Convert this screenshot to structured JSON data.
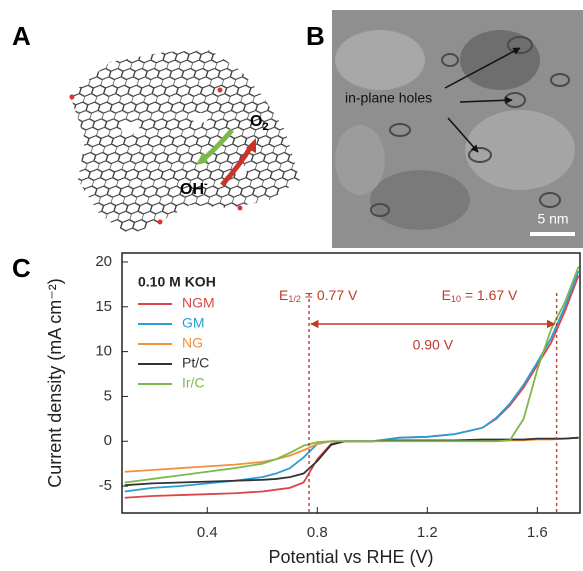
{
  "panels": {
    "a": {
      "label": "A",
      "o2": "O",
      "o2_sub": "2",
      "oh": "OH",
      "oh_sup": "-"
    },
    "b": {
      "label": "B",
      "annotation": "in-plane holes",
      "scale_bar": "5 nm"
    },
    "c": {
      "label": "C"
    }
  },
  "chart_data": {
    "type": "line",
    "xlabel": "Potential vs RHE (V)",
    "ylabel": "Current density (mA cm⁻²)",
    "legend_title": "0.10 M KOH",
    "x": [
      0.1,
      0.2,
      0.3,
      0.4,
      0.5,
      0.6,
      0.65,
      0.7,
      0.75,
      0.8,
      0.85,
      0.9,
      1.0,
      1.1,
      1.2,
      1.3,
      1.4,
      1.45,
      1.5,
      1.55,
      1.6,
      1.65,
      1.7,
      1.75
    ],
    "series": [
      {
        "name": "NGM",
        "color": "#d9454a",
        "values": [
          -6.3,
          -6.1,
          -6.0,
          -5.9,
          -5.8,
          -5.6,
          -5.4,
          -5.2,
          -4.6,
          -2.0,
          -0.3,
          0,
          0,
          0.4,
          0.5,
          0.8,
          1.5,
          2.5,
          4.0,
          6.0,
          8.5,
          11.0,
          14.5,
          18.5
        ]
      },
      {
        "name": "GM",
        "color": "#2a9fd6",
        "values": [
          -5.6,
          -5.2,
          -5.0,
          -4.7,
          -4.4,
          -4.0,
          -3.6,
          -3.0,
          -1.8,
          -0.3,
          0,
          0,
          0,
          0.4,
          0.5,
          0.8,
          1.5,
          2.6,
          4.2,
          6.3,
          8.8,
          11.5,
          15.0,
          19.0
        ]
      },
      {
        "name": "NG",
        "color": "#f0923a",
        "values": [
          -3.4,
          -3.2,
          -3.0,
          -2.8,
          -2.6,
          -2.3,
          -2.0,
          -1.6,
          -1.0,
          -0.3,
          0,
          0,
          0,
          0.1,
          0.1,
          0.1,
          0.1,
          0.1,
          0.1,
          0.1,
          0.2,
          0.2,
          0.3,
          0.4
        ]
      },
      {
        "name": "Pt/C",
        "color": "#333333",
        "values": [
          -4.9,
          -4.7,
          -4.6,
          -4.5,
          -4.4,
          -4.3,
          -4.2,
          -4.0,
          -3.6,
          -2.2,
          -0.4,
          0,
          0,
          0.1,
          0.1,
          0.1,
          0.2,
          0.2,
          0.2,
          0.2,
          0.3,
          0.3,
          0.3,
          0.4
        ]
      },
      {
        "name": "Ir/C",
        "color": "#7db84a",
        "values": [
          -4.6,
          -4.2,
          -3.8,
          -3.4,
          -3.0,
          -2.5,
          -2.0,
          -1.3,
          -0.5,
          -0.1,
          0,
          0,
          0,
          0,
          0,
          0,
          0,
          0,
          0.1,
          2.5,
          8.0,
          12.5,
          15.5,
          19.5
        ]
      }
    ],
    "xlim": [
      0.09,
      1.755
    ],
    "xticks": [
      0.4,
      0.8,
      1.2,
      1.6
    ],
    "ylim": [
      -8,
      21
    ],
    "yticks": [
      -5,
      0,
      5,
      10,
      15,
      20
    ],
    "markers": [
      {
        "label": "E",
        "sub": "1/2",
        "text": " = 0.77 V",
        "x": 0.77
      },
      {
        "label": "E",
        "sub": "10",
        "text": " = 1.67 V",
        "x": 1.67
      }
    ],
    "difference_label": "0.90 V",
    "annotation_color": "#c0392b"
  }
}
